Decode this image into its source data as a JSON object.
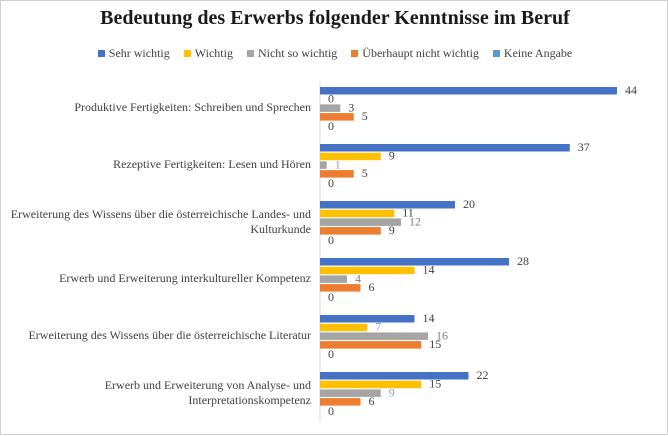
{
  "chart_data": {
    "type": "bar",
    "orientation": "horizontal",
    "title": "Bedeutung des Erwerbs folgender Kenntnisse im Beruf",
    "legend_position": "top",
    "grid": false,
    "xlim": [
      0,
      44
    ],
    "categories": [
      "Produktive Fertigkeiten: Schreiben und Sprechen",
      "Rezeptive Fertigkeiten: Lesen und Hören",
      "Erweiterung des Wissens über die österreichische Landes- und Kulturkunde",
      "Erwerb und Erweiterung interkultureller Kompetenz",
      "Erweiterung des Wissens über die österreichische Literatur",
      "Erwerb und Erweiterung von Analyse- und Interpretationskompetenz"
    ],
    "series": [
      {
        "name": "Sehr wichtig",
        "color": "#4472c4",
        "label_color": "#404040",
        "values": [
          44,
          37,
          20,
          28,
          14,
          22
        ]
      },
      {
        "name": "Wichtig",
        "color": "#ffc000",
        "label_color": "#404040",
        "values": [
          0,
          9,
          11,
          14,
          7,
          15
        ]
      },
      {
        "name": "Nicht so wichtig",
        "color": "#a5a5a5",
        "label_color": "#404040",
        "values": [
          3,
          1,
          12,
          4,
          16,
          9
        ]
      },
      {
        "name": "Überhaupt nicht wichtig",
        "color": "#ed7d31",
        "label_color": "#404040",
        "values": [
          5,
          5,
          9,
          6,
          15,
          6
        ]
      },
      {
        "name": "Keine Angabe",
        "color": "#5b9bd5",
        "label_color": "#404040",
        "values": [
          0,
          0,
          0,
          0,
          0,
          0
        ]
      }
    ],
    "data_label_colors": {
      "Wichtig": [
        "#404040",
        "#404040",
        "#404040",
        "#404040",
        "#7f9fbf",
        "#404040"
      ],
      "Nicht so wichtig": [
        "#404040",
        "#7f9fbf",
        "#7f7f7f",
        "#7f7f7f",
        "#7f7f7f",
        "#7f9fbf"
      ]
    }
  }
}
